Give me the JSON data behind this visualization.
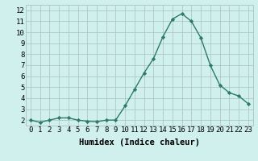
{
  "x": [
    0,
    1,
    2,
    3,
    4,
    5,
    6,
    7,
    8,
    9,
    10,
    11,
    12,
    13,
    14,
    15,
    16,
    17,
    18,
    19,
    20,
    21,
    22,
    23
  ],
  "y": [
    2.0,
    1.8,
    2.0,
    2.2,
    2.2,
    2.0,
    1.9,
    1.85,
    2.0,
    2.0,
    3.3,
    4.8,
    6.3,
    7.6,
    9.6,
    11.2,
    11.7,
    11.0,
    9.5,
    7.0,
    5.2,
    4.5,
    4.2,
    3.5
  ],
  "line_color": "#2d7a6a",
  "marker": "D",
  "marker_size": 2.2,
  "bg_color": "#cff0ec",
  "grid_color": "#b0c8c4",
  "axis_bg": "#cff0ec",
  "bottom_bar_color": "#4a8080",
  "xlabel": "Humidex (Indice chaleur)",
  "ylabel": "",
  "xlim": [
    -0.5,
    23.5
  ],
  "ylim": [
    1.5,
    12.5
  ],
  "yticks": [
    2,
    3,
    4,
    5,
    6,
    7,
    8,
    9,
    10,
    11,
    12
  ],
  "xticks": [
    0,
    1,
    2,
    3,
    4,
    5,
    6,
    7,
    8,
    9,
    10,
    11,
    12,
    13,
    14,
    15,
    16,
    17,
    18,
    19,
    20,
    21,
    22,
    23
  ],
  "xlabel_fontsize": 7.5,
  "tick_fontsize": 6.5,
  "line_width": 1.0
}
